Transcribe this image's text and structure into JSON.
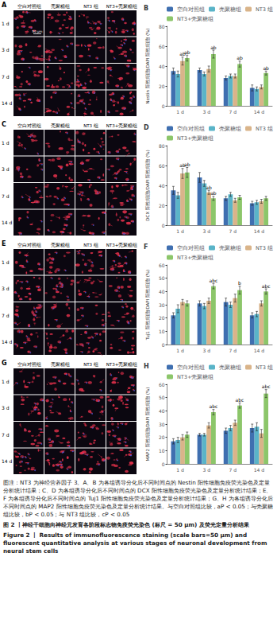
{
  "figure": {
    "image_panels": [
      {
        "label": "A",
        "columns": [
          "空白对照组",
          "壳聚糖组",
          "NT3 组",
          "NT3+壳聚糖组"
        ],
        "rows": [
          "1 d",
          "3 d",
          "7 d",
          "14 d"
        ],
        "scale_bar": "50 μm"
      },
      {
        "label": "C",
        "columns": [
          "空白对照组",
          "壳聚糖组",
          "NT3 组",
          "NT3+壳聚糖组"
        ],
        "rows": [
          "1 d",
          "3 d",
          "7 d",
          "14 d"
        ]
      },
      {
        "label": "E",
        "columns": [
          "空白对照组",
          "壳聚糖组",
          "NT3 组",
          "NT3+壳聚糖组"
        ],
        "rows": [
          "1 d",
          "3 d",
          "7 d",
          "14 d"
        ]
      },
      {
        "label": "G",
        "columns": [
          "空白对照组",
          "壳聚糖组",
          "NT3 组",
          "NT3+壳聚糖组"
        ],
        "rows": [
          "1 d",
          "3 d",
          "7 d",
          "14 d"
        ]
      }
    ],
    "caption": {
      "note": "图注：NT3 为神经营养因子 3。A、B 为各组诱导分化后不同时间点的 Nestin 阳性细胞免疫荧光染色及定量分析统计结果；C、D 为各组诱导分化后不同时间点的 DCX 阳性细胞免疫荧光染色及定量分析统计结果；E、F 为各组诱导分化后不同时间点的 Tuj1 阳性细胞免疫荧光染色及定量分析统计结果；G、H 为各组诱导分化后不同时间点的 MAP2 阳性细胞免疫荧光染色及定量分析统计结果。与空白对照组比较，aP < 0.05；与壳聚糖组比较，bP < 0.05；与 NT3 组比较，cP < 0.05",
      "title_zh": "图 2 丨神经干细胞向神经元发育各阶段标志物免疫荧光染色 (标尺 = 50 μm) 及荧光定量分析结果",
      "title_en": "Figure 2 丨 Results of immunofluorescence staining (scale bars=50 μm) and fluorescent quantitative analysis at various stages of neuronal development from neural stem cells"
    }
  },
  "chart_data": [
    {
      "type": "bar",
      "title": "B",
      "y_label": "Nestin 阳性细胞/DAPI 阳性细胞 (%)",
      "categories": [
        "1 d",
        "3 d",
        "7 d",
        "14 d"
      ],
      "ylim": [
        0,
        80
      ],
      "yticks": [
        0,
        20,
        40,
        60,
        80
      ],
      "grid": false,
      "legend": "top",
      "series": [
        {
          "name": "空白对照组",
          "color": "#3f6fb0",
          "values": [
            35,
            36,
            28,
            18
          ],
          "errors": [
            3,
            2,
            2,
            3
          ],
          "annotations": [
            null,
            null,
            null,
            null
          ]
        },
        {
          "name": "壳聚糖组",
          "color": "#5ab4c8",
          "values": [
            32,
            32,
            30,
            17
          ],
          "errors": [
            3,
            2,
            2,
            2
          ],
          "annotations": [
            null,
            null,
            null,
            null
          ]
        },
        {
          "name": "NT3 组",
          "color": "#d9b48a",
          "values": [
            45,
            37,
            30,
            19
          ],
          "errors": [
            4,
            3,
            2,
            2
          ],
          "annotations": [
            "ab",
            null,
            null,
            null
          ]
        },
        {
          "name": "NT3+壳聚糖组",
          "color": "#8cc66a",
          "values": [
            48,
            52,
            42,
            33
          ],
          "errors": [
            3,
            4,
            3,
            2
          ],
          "annotations": [
            "ab",
            "ab",
            "ab",
            "ab"
          ]
        }
      ]
    },
    {
      "type": "bar",
      "title": "D",
      "y_label": "DCX 阳性细胞/DAPI 阳性细胞 (%)",
      "categories": [
        "1 d",
        "3 d",
        "7 d",
        "14 d"
      ],
      "ylim": [
        0,
        80
      ],
      "yticks": [
        0,
        20,
        40,
        60,
        80
      ],
      "grid": false,
      "legend": "top",
      "series": [
        {
          "name": "空白对照组",
          "color": "#3f6fb0",
          "values": [
            35,
            48,
            27,
            22
          ],
          "errors": [
            4,
            5,
            2,
            2
          ],
          "annotations": [
            null,
            null,
            null,
            null
          ]
        },
        {
          "name": "壳聚糖组",
          "color": "#5ab4c8",
          "values": [
            30,
            42,
            31,
            23
          ],
          "errors": [
            3,
            3,
            2,
            2
          ],
          "annotations": [
            null,
            null,
            null,
            null
          ]
        },
        {
          "name": "NT3 组",
          "color": "#d9b48a",
          "values": [
            52,
            33,
            25,
            24
          ],
          "errors": [
            5,
            2,
            2,
            2
          ],
          "annotations": [
            "ab",
            "ab",
            null,
            null
          ]
        },
        {
          "name": "NT3+壳聚糖组",
          "color": "#8cc66a",
          "values": [
            53,
            27,
            28,
            27
          ],
          "errors": [
            5,
            2,
            2,
            2
          ],
          "annotations": [
            "ab",
            "ab",
            null,
            null
          ]
        }
      ]
    },
    {
      "type": "bar",
      "title": "F",
      "y_label": "Tuj1 阳性细胞/DAPI 阳性细胞 (%)",
      "categories": [
        "1 d",
        "3 d",
        "7 d",
        "14 d"
      ],
      "ylim": [
        0,
        60
      ],
      "yticks": [
        0,
        10,
        20,
        30,
        40,
        50,
        60
      ],
      "grid": false,
      "legend": "top",
      "series": [
        {
          "name": "空白对照组",
          "color": "#3f6fb0",
          "values": [
            22,
            31,
            32,
            22
          ],
          "errors": [
            2,
            2,
            3,
            2
          ],
          "annotations": [
            null,
            null,
            null,
            null
          ]
        },
        {
          "name": "壳聚糖组",
          "color": "#5ab4c8",
          "values": [
            27,
            29,
            30,
            23
          ],
          "errors": [
            3,
            2,
            2,
            2
          ],
          "annotations": [
            null,
            null,
            null,
            null
          ]
        },
        {
          "name": "NT3 组",
          "color": "#d9b48a",
          "values": [
            32,
            33,
            35,
            31
          ],
          "errors": [
            2,
            2,
            3,
            2
          ],
          "annotations": [
            null,
            null,
            null,
            null
          ]
        },
        {
          "name": "NT3+壳聚糖组",
          "color": "#8cc66a",
          "values": [
            31,
            44,
            41,
            40
          ],
          "errors": [
            2,
            2,
            3,
            2
          ],
          "annotations": [
            null,
            "abc",
            "b",
            "abc"
          ]
        }
      ]
    },
    {
      "type": "bar",
      "title": "H",
      "y_label": "MAP2 阳性细胞/DAPI 阳性细胞 (%)",
      "categories": [
        "1 d",
        "3 d",
        "7 d",
        "14 d"
      ],
      "ylim": [
        0,
        60
      ],
      "yticks": [
        0,
        10,
        20,
        30,
        40,
        50,
        60
      ],
      "grid": false,
      "legend": "top",
      "series": [
        {
          "name": "空白对照组",
          "color": "#3f6fb0",
          "values": [
            17,
            22,
            25,
            27
          ],
          "errors": [
            2,
            1,
            2,
            3
          ],
          "annotations": [
            null,
            null,
            null,
            null
          ]
        },
        {
          "name": "壳聚糖组",
          "color": "#5ab4c8",
          "values": [
            18,
            22,
            27,
            28
          ],
          "errors": [
            2,
            1,
            2,
            3
          ],
          "annotations": [
            null,
            null,
            null,
            null
          ]
        },
        {
          "name": "NT3 组",
          "color": "#d9b48a",
          "values": [
            20,
            29,
            31,
            23
          ],
          "errors": [
            2,
            2,
            2,
            3
          ],
          "annotations": [
            null,
            null,
            null,
            null
          ]
        },
        {
          "name": "NT3+壳聚糖组",
          "color": "#8cc66a",
          "values": [
            22,
            39,
            44,
            53
          ],
          "errors": [
            2,
            2,
            2,
            3
          ],
          "annotations": [
            null,
            "abc",
            "abc",
            "abc"
          ]
        }
      ]
    }
  ]
}
